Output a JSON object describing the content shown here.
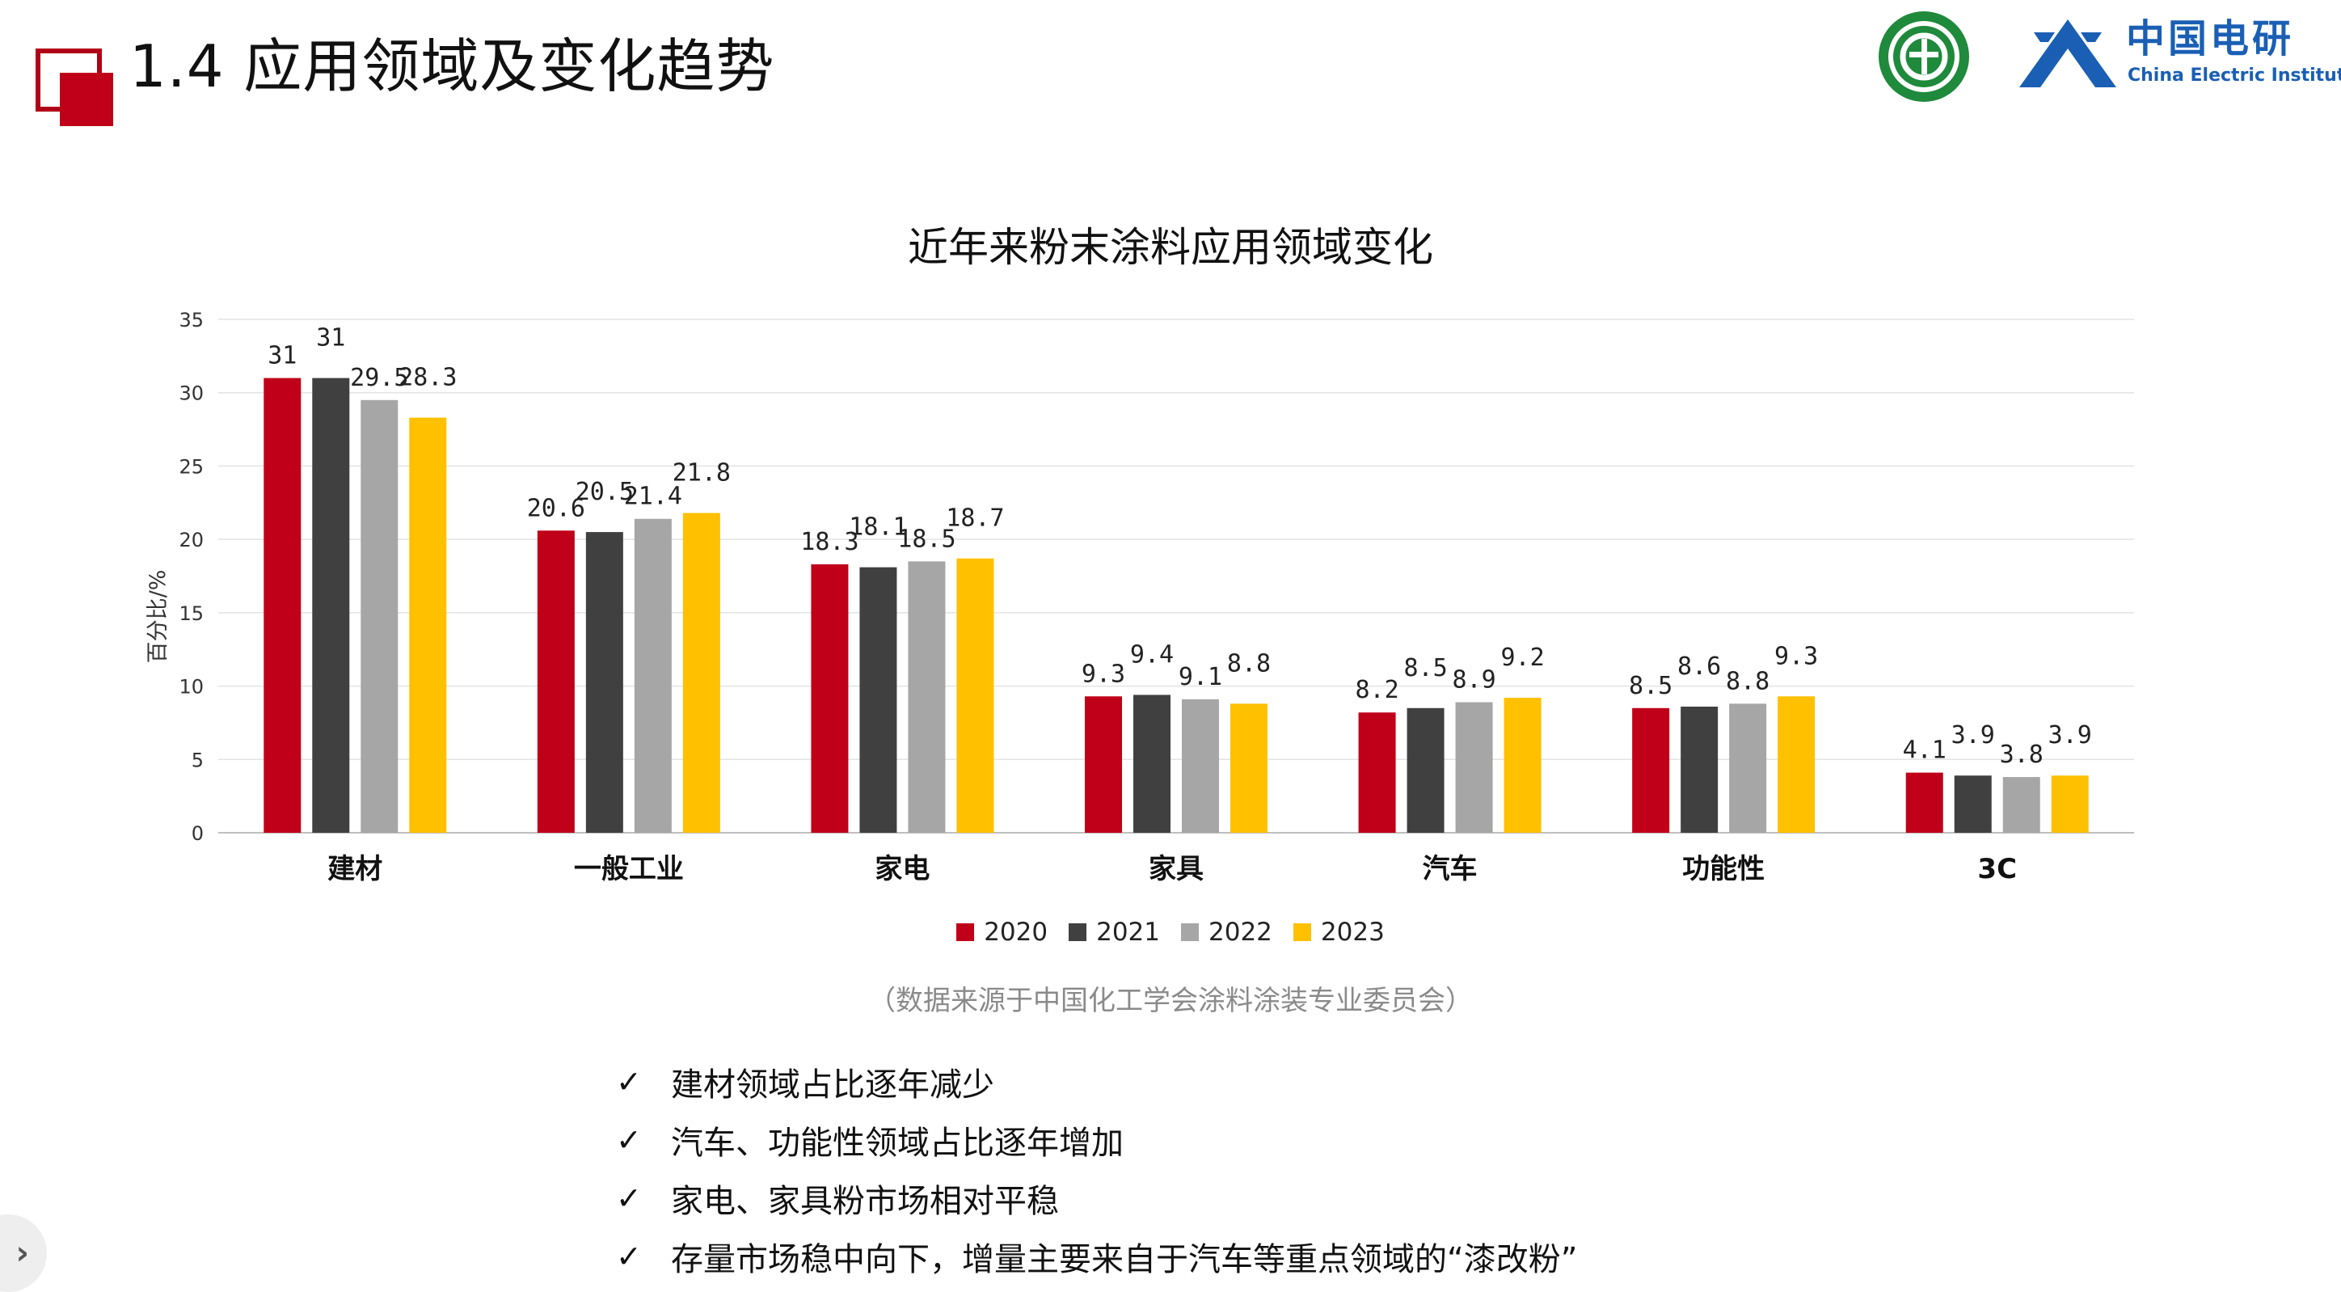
{
  "slide": {
    "title": "1.4 应用领域及变化趋势"
  },
  "logos": {
    "cei_cn": "中国电研",
    "cei_en": "China Electric Institute"
  },
  "colors": {
    "accent_red": "#c00018",
    "cei_blue": "#1a5fb4",
    "logo_green": "#1f8a3b"
  },
  "chart_data": {
    "type": "bar",
    "title": "近年来粉末涂料应用领域变化",
    "ylabel": "百分比/%",
    "xlabel": "",
    "ylim": [
      0,
      35
    ],
    "yticks": [
      0,
      5,
      10,
      15,
      20,
      25,
      30,
      35
    ],
    "grid": true,
    "legend_position": "bottom",
    "categories": [
      "建材",
      "一般工业",
      "家电",
      "家具",
      "汽车",
      "功能性",
      "3C"
    ],
    "series": [
      {
        "name": "2020",
        "color": "#c00018",
        "values": [
          31,
          20.6,
          18.3,
          9.3,
          8.2,
          8.5,
          4.1
        ]
      },
      {
        "name": "2021",
        "color": "#404040",
        "values": [
          31,
          20.5,
          18.1,
          9.4,
          8.5,
          8.6,
          3.9
        ]
      },
      {
        "name": "2022",
        "color": "#a6a6a6",
        "values": [
          29.5,
          21.4,
          18.5,
          9.1,
          8.9,
          8.8,
          3.8
        ]
      },
      {
        "name": "2023",
        "color": "#ffc000",
        "values": [
          28.3,
          21.8,
          18.7,
          8.8,
          9.2,
          9.3,
          3.9
        ]
      }
    ]
  },
  "source_note": "（数据来源于中国化工学会涂料涂装专业委员会）",
  "bullets": [
    "建材领域占比逐年减少",
    "汽车、功能性领域占比逐年增加",
    "家电、家具粉市场相对平稳",
    "存量市场稳中向下，增量主要来自于汽车等重点领域的“漆改粉”"
  ],
  "bullet_symbol": "✓",
  "nav": {
    "next_symbol": "›"
  }
}
